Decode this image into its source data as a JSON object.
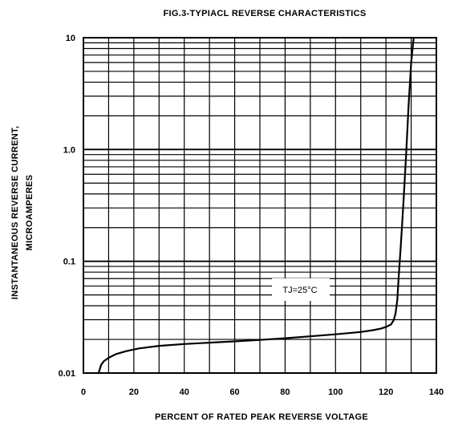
{
  "chart_data": {
    "type": "line",
    "title": "FIG.3-TYPIACL REVERSE CHARACTERISTICS",
    "xlabel": "PERCENT OF RATED PEAK REVERSE VOLTAGE",
    "ylabel_line1": "INSTANTANEOUS REVERSE CURRENT,",
    "ylabel_line2": "MICROAMPERES",
    "xlim": [
      0,
      140
    ],
    "ylim": [
      0.01,
      10
    ],
    "yscale": "log",
    "grid": true,
    "x_ticks": [
      0,
      20,
      40,
      60,
      80,
      100,
      120,
      140
    ],
    "x_tick_labels": [
      "0",
      "20",
      "40",
      "60",
      "80",
      "100",
      "120",
      "140"
    ],
    "y_ticks": [
      0.01,
      0.1,
      1,
      10
    ],
    "y_tick_labels": [
      "0.01",
      "0.1",
      "1.0",
      "10"
    ],
    "annotation": "TJ=25°C",
    "series": [
      {
        "x": [
          6,
          7,
          8,
          10,
          13,
          17,
          22,
          30,
          40,
          50,
          60,
          70,
          80,
          90,
          100,
          110,
          115,
          118,
          120,
          122,
          123,
          123.8,
          124.5,
          125,
          126,
          127,
          128,
          129,
          130,
          131
        ],
        "y": [
          0.01,
          0.0118,
          0.0127,
          0.0137,
          0.0148,
          0.0157,
          0.0166,
          0.0175,
          0.0182,
          0.0187,
          0.0192,
          0.0198,
          0.0205,
          0.0213,
          0.0222,
          0.0233,
          0.0242,
          0.025,
          0.0258,
          0.0272,
          0.0295,
          0.034,
          0.045,
          0.07,
          0.15,
          0.35,
          0.9,
          2.5,
          6,
          10
        ]
      }
    ]
  }
}
